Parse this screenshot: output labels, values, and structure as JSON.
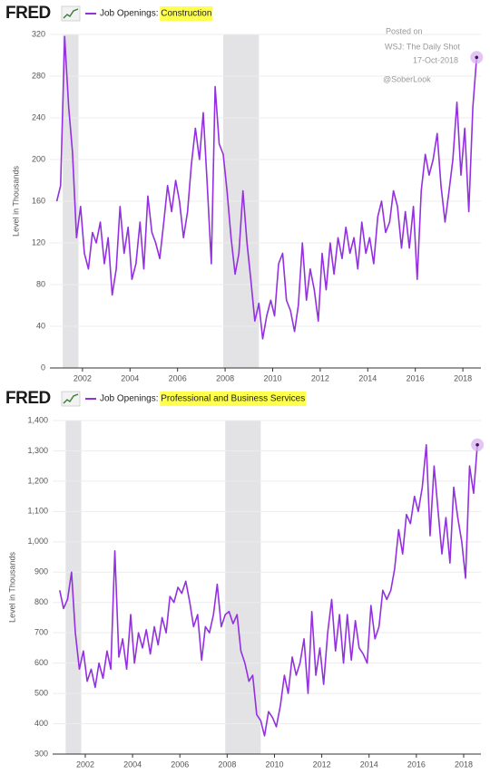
{
  "chart_data": [
    {
      "type": "line",
      "logo": "FRED",
      "series": [
        {
          "name": "Job Openings: Construction",
          "color": "#9330e0",
          "values": [
            160,
            175,
            318,
            250,
            207,
            125,
            155,
            110,
            95,
            130,
            120,
            140,
            100,
            125,
            70,
            95,
            155,
            110,
            135,
            85,
            100,
            140,
            95,
            165,
            130,
            120,
            105,
            140,
            175,
            150,
            180,
            160,
            125,
            150,
            195,
            230,
            200,
            245,
            175,
            100,
            270,
            215,
            205,
            170,
            125,
            90,
            110,
            170,
            120,
            85,
            45,
            62,
            28,
            50,
            65,
            50,
            100,
            110,
            65,
            55,
            35,
            60,
            120,
            65,
            95,
            75,
            45,
            110,
            75,
            120,
            90,
            125,
            105,
            135,
            110,
            125,
            95,
            140,
            110,
            125,
            100,
            145,
            160,
            130,
            140,
            170,
            155,
            115,
            150,
            115,
            155,
            85,
            170,
            205,
            185,
            200,
            225,
            175,
            140,
            170,
            200,
            255,
            185,
            230,
            150,
            250,
            298
          ]
        }
      ],
      "x": [
        2000.92,
        2001.08,
        2001.25,
        2001.42,
        2001.58,
        2001.75,
        2001.92,
        2002.08,
        2002.25,
        2002.42,
        2002.58,
        2002.75,
        2002.92,
        2003.08,
        2003.25,
        2003.42,
        2003.58,
        2003.75,
        2003.92,
        2004.08,
        2004.25,
        2004.42,
        2004.58,
        2004.75,
        2004.92,
        2005.08,
        2005.25,
        2005.42,
        2005.58,
        2005.75,
        2005.92,
        2006.08,
        2006.25,
        2006.42,
        2006.58,
        2006.75,
        2006.92,
        2007.08,
        2007.25,
        2007.42,
        2007.58,
        2007.75,
        2007.92,
        2008.08,
        2008.25,
        2008.42,
        2008.58,
        2008.75,
        2008.92,
        2009.08,
        2009.25,
        2009.42,
        2009.58,
        2009.75,
        2009.92,
        2010.08,
        2010.25,
        2010.42,
        2010.58,
        2010.75,
        2010.92,
        2011.08,
        2011.25,
        2011.42,
        2011.58,
        2011.75,
        2011.92,
        2012.08,
        2012.25,
        2012.42,
        2012.58,
        2012.75,
        2012.92,
        2013.08,
        2013.25,
        2013.42,
        2013.58,
        2013.75,
        2013.92,
        2014.08,
        2014.25,
        2014.42,
        2014.58,
        2014.75,
        2014.92,
        2015.08,
        2015.25,
        2015.42,
        2015.58,
        2015.75,
        2015.92,
        2016.08,
        2016.25,
        2016.42,
        2016.58,
        2016.75,
        2016.92,
        2017.08,
        2017.25,
        2017.42,
        2017.58,
        2017.75,
        2017.92,
        2018.08,
        2018.25,
        2018.42,
        2018.58
      ],
      "y_label": "Level in Thousands",
      "xlim": [
        2000.63,
        2018.76
      ],
      "xticks": [
        2002,
        2004,
        2006,
        2008,
        2010,
        2012,
        2014,
        2016,
        2018
      ],
      "ylim": [
        0,
        320
      ],
      "yticks": [
        0,
        40,
        80,
        120,
        160,
        200,
        240,
        280,
        320
      ],
      "grid": true,
      "recessions": [
        [
          2001.17,
          2001.83
        ],
        [
          2007.92,
          2009.42
        ]
      ],
      "highlight_last": true,
      "annotations": [
        "Posted on",
        "WSJ: The Daily Shot",
        "17-Oct-2018",
        "@SoberLook"
      ]
    },
    {
      "type": "line",
      "logo": "FRED",
      "series": [
        {
          "name": "Job Openings: Professional and Business Services",
          "color": "#9330e0",
          "values": [
            840,
            780,
            810,
            900,
            700,
            580,
            640,
            540,
            580,
            520,
            600,
            550,
            640,
            580,
            970,
            620,
            680,
            580,
            760,
            600,
            700,
            650,
            710,
            630,
            720,
            660,
            750,
            700,
            820,
            800,
            850,
            830,
            870,
            800,
            720,
            760,
            610,
            720,
            700,
            760,
            860,
            720,
            760,
            770,
            730,
            760,
            640,
            600,
            540,
            560,
            430,
            410,
            360,
            440,
            420,
            390,
            460,
            560,
            500,
            620,
            560,
            600,
            680,
            500,
            770,
            560,
            650,
            530,
            700,
            810,
            640,
            760,
            600,
            760,
            610,
            740,
            650,
            630,
            600,
            790,
            680,
            720,
            840,
            810,
            840,
            910,
            1040,
            960,
            1090,
            1060,
            1150,
            1100,
            1180,
            1320,
            1020,
            1250,
            1100,
            960,
            1080,
            930,
            1180,
            1080,
            1000,
            880,
            1250,
            1160,
            1320
          ]
        }
      ],
      "x": [
        2000.92,
        2001.08,
        2001.25,
        2001.42,
        2001.58,
        2001.75,
        2001.92,
        2002.08,
        2002.25,
        2002.42,
        2002.58,
        2002.75,
        2002.92,
        2003.08,
        2003.25,
        2003.42,
        2003.58,
        2003.75,
        2003.92,
        2004.08,
        2004.25,
        2004.42,
        2004.58,
        2004.75,
        2004.92,
        2005.08,
        2005.25,
        2005.42,
        2005.58,
        2005.75,
        2005.92,
        2006.08,
        2006.25,
        2006.42,
        2006.58,
        2006.75,
        2006.92,
        2007.08,
        2007.25,
        2007.42,
        2007.58,
        2007.75,
        2007.92,
        2008.08,
        2008.25,
        2008.42,
        2008.58,
        2008.75,
        2008.92,
        2009.08,
        2009.25,
        2009.42,
        2009.58,
        2009.75,
        2009.92,
        2010.08,
        2010.25,
        2010.42,
        2010.58,
        2010.75,
        2010.92,
        2011.08,
        2011.25,
        2011.42,
        2011.58,
        2011.75,
        2011.92,
        2012.08,
        2012.25,
        2012.42,
        2012.58,
        2012.75,
        2012.92,
        2013.08,
        2013.25,
        2013.42,
        2013.58,
        2013.75,
        2013.92,
        2014.08,
        2014.25,
        2014.42,
        2014.58,
        2014.75,
        2014.92,
        2015.08,
        2015.25,
        2015.42,
        2015.58,
        2015.75,
        2015.92,
        2016.08,
        2016.25,
        2016.42,
        2016.58,
        2016.75,
        2016.92,
        2017.08,
        2017.25,
        2017.42,
        2017.58,
        2017.75,
        2017.92,
        2018.08,
        2018.25,
        2018.42,
        2018.58
      ],
      "y_label": "Level in Thousands",
      "xlim": [
        2000.62,
        2018.73
      ],
      "xticks": [
        2002,
        2004,
        2006,
        2008,
        2010,
        2012,
        2014,
        2016,
        2018
      ],
      "ylim": [
        300,
        1400
      ],
      "yticks": [
        300,
        400,
        500,
        600,
        700,
        800,
        900,
        {
          "value": 1000,
          "label": "1,000"
        },
        {
          "value": 1100,
          "label": "1,100"
        },
        {
          "value": 1200,
          "label": "1,200"
        },
        {
          "value": 1300,
          "label": "1,300"
        },
        {
          "value": 1400,
          "label": "1,400"
        }
      ],
      "grid": true,
      "recessions": [
        [
          2001.17,
          2001.83
        ],
        [
          2007.92,
          2009.42
        ]
      ],
      "highlight_last": true
    }
  ]
}
